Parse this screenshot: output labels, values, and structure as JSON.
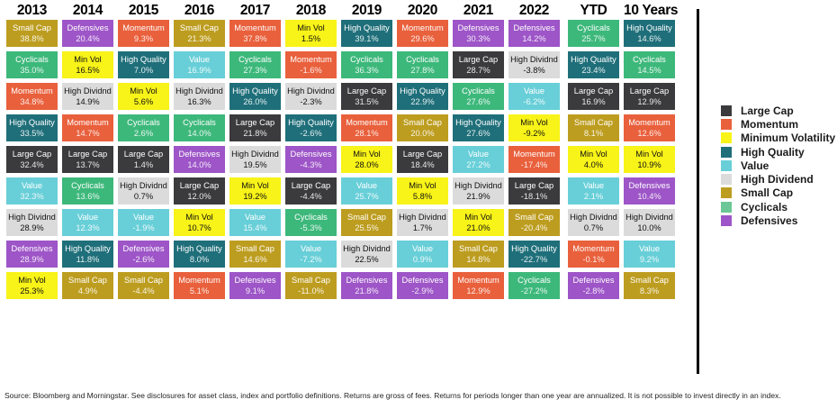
{
  "chart_data": {
    "type": "table",
    "unit": "%",
    "legend_position": "right",
    "columns": [
      {
        "label": "2013",
        "cells": [
          {
            "factor": "Small Cap",
            "value": "38.8%"
          },
          {
            "factor": "Cyclicals",
            "value": "35.0%"
          },
          {
            "factor": "Momentum",
            "value": "34.8%"
          },
          {
            "factor": "High Quality",
            "value": "33.5%"
          },
          {
            "factor": "Large Cap",
            "value": "32.4%"
          },
          {
            "factor": "Value",
            "value": "32.3%"
          },
          {
            "factor": "High Dividnd",
            "value": "28.9%"
          },
          {
            "factor": "Defensives",
            "value": "28.9%"
          },
          {
            "factor": "Min Vol",
            "value": "25.3%"
          }
        ]
      },
      {
        "label": "2014",
        "cells": [
          {
            "factor": "Defensives",
            "value": "20.4%"
          },
          {
            "factor": "Min Vol",
            "value": "16.5%"
          },
          {
            "factor": "High Dividnd",
            "value": "14.9%"
          },
          {
            "factor": "Momentum",
            "value": "14.7%"
          },
          {
            "factor": "Large Cap",
            "value": "13.7%"
          },
          {
            "factor": "Cyclicals",
            "value": "13.6%"
          },
          {
            "factor": "Value",
            "value": "12.3%"
          },
          {
            "factor": "High Quality",
            "value": "11.8%"
          },
          {
            "factor": "Small Cap",
            "value": "4.9%"
          }
        ]
      },
      {
        "label": "2015",
        "cells": [
          {
            "factor": "Momentum",
            "value": "9.3%"
          },
          {
            "factor": "High Quality",
            "value": "7.0%"
          },
          {
            "factor": "Min Vol",
            "value": "5.6%"
          },
          {
            "factor": "Cyclicals",
            "value": "2.6%"
          },
          {
            "factor": "Large Cap",
            "value": "1.4%"
          },
          {
            "factor": "High Dividnd",
            "value": "0.7%"
          },
          {
            "factor": "Value",
            "value": "-1.9%"
          },
          {
            "factor": "Defensives",
            "value": "-2.6%"
          },
          {
            "factor": "Small Cap",
            "value": "-4.4%"
          }
        ]
      },
      {
        "label": "2016",
        "cells": [
          {
            "factor": "Small Cap",
            "value": "21.3%"
          },
          {
            "factor": "Value",
            "value": "16.9%"
          },
          {
            "factor": "High Dividnd",
            "value": "16.3%"
          },
          {
            "factor": "Cyclicals",
            "value": "14.0%"
          },
          {
            "factor": "Defensives",
            "value": "14.0%"
          },
          {
            "factor": "Large Cap",
            "value": "12.0%"
          },
          {
            "factor": "Min Vol",
            "value": "10.7%"
          },
          {
            "factor": "High Quality",
            "value": "8.0%"
          },
          {
            "factor": "Momentum",
            "value": "5.1%"
          }
        ]
      },
      {
        "label": "2017",
        "cells": [
          {
            "factor": "Momentum",
            "value": "37.8%"
          },
          {
            "factor": "Cyclicals",
            "value": "27.3%"
          },
          {
            "factor": "High Quality",
            "value": "26.0%"
          },
          {
            "factor": "Large Cap",
            "value": "21.8%"
          },
          {
            "factor": "High Dividnd",
            "value": "19.5%"
          },
          {
            "factor": "Min Vol",
            "value": "19.2%"
          },
          {
            "factor": "Value",
            "value": "15.4%"
          },
          {
            "factor": "Small Cap",
            "value": "14.6%"
          },
          {
            "factor": "Defensives",
            "value": "9.1%"
          }
        ]
      },
      {
        "label": "2018",
        "cells": [
          {
            "factor": "Min Vol",
            "value": "1.5%"
          },
          {
            "factor": "Momentum",
            "value": "-1.6%"
          },
          {
            "factor": "High Dividnd",
            "value": "-2.3%"
          },
          {
            "factor": "High Quality",
            "value": "-2.6%"
          },
          {
            "factor": "Defensives",
            "value": "-4.3%"
          },
          {
            "factor": "Large Cap",
            "value": "-4.4%"
          },
          {
            "factor": "Cyclicals",
            "value": "-5.3%"
          },
          {
            "factor": "Value",
            "value": "-7.2%"
          },
          {
            "factor": "Small Cap",
            "value": "-11.0%"
          }
        ]
      },
      {
        "label": "2019",
        "cells": [
          {
            "factor": "High Quality",
            "value": "39.1%"
          },
          {
            "factor": "Cyclicals",
            "value": "36.3%"
          },
          {
            "factor": "Large Cap",
            "value": "31.5%"
          },
          {
            "factor": "Momentum",
            "value": "28.1%"
          },
          {
            "factor": "Min Vol",
            "value": "28.0%"
          },
          {
            "factor": "Value",
            "value": "25.7%"
          },
          {
            "factor": "Small Cap",
            "value": "25.5%"
          },
          {
            "factor": "High Dividnd",
            "value": "22.5%"
          },
          {
            "factor": "Defensives",
            "value": "21.8%"
          }
        ]
      },
      {
        "label": "2020",
        "cells": [
          {
            "factor": "Momentum",
            "value": "29.6%"
          },
          {
            "factor": "Cyclicals",
            "value": "27.8%"
          },
          {
            "factor": "High Quality",
            "value": "22.9%"
          },
          {
            "factor": "Small Cap",
            "value": "20.0%"
          },
          {
            "factor": "Large Cap",
            "value": "18.4%"
          },
          {
            "factor": "Min Vol",
            "value": "5.8%"
          },
          {
            "factor": "High Dividnd",
            "value": "1.7%"
          },
          {
            "factor": "Value",
            "value": "0.9%"
          },
          {
            "factor": "Defensives",
            "value": "-2.9%"
          }
        ]
      },
      {
        "label": "2021",
        "cells": [
          {
            "factor": "Defensives",
            "value": "30.3%"
          },
          {
            "factor": "Large Cap",
            "value": "28.7%"
          },
          {
            "factor": "Cyclicals",
            "value": "27.6%"
          },
          {
            "factor": "High Quality",
            "value": "27.6%"
          },
          {
            "factor": "Value",
            "value": "27.2%"
          },
          {
            "factor": "High Dividnd",
            "value": "21.9%"
          },
          {
            "factor": "Min Vol",
            "value": "21.0%"
          },
          {
            "factor": "Small Cap",
            "value": "14.8%"
          },
          {
            "factor": "Momentum",
            "value": "12.9%"
          }
        ]
      },
      {
        "label": "2022",
        "cells": [
          {
            "factor": "Defensives",
            "value": "14.2%"
          },
          {
            "factor": "High Dividnd",
            "value": "-3.8%"
          },
          {
            "factor": "Value",
            "value": "-6.2%"
          },
          {
            "factor": "Min Vol",
            "value": "-9.2%"
          },
          {
            "factor": "Momentum",
            "value": "-17.4%"
          },
          {
            "factor": "Large Cap",
            "value": "-18.1%"
          },
          {
            "factor": "Small Cap",
            "value": "-20.4%"
          },
          {
            "factor": "High Quality",
            "value": "-22.7%"
          },
          {
            "factor": "Cyclicals",
            "value": "-27.2%"
          }
        ]
      },
      {
        "label": "YTD",
        "extra_gap_before": true,
        "cells": [
          {
            "factor": "Cyclicals",
            "value": "25.7%"
          },
          {
            "factor": "High Quality",
            "value": "23.4%"
          },
          {
            "factor": "Large Cap",
            "value": "16.9%"
          },
          {
            "factor": "Small Cap",
            "value": "8.1%"
          },
          {
            "factor": "Min Vol",
            "value": "4.0%"
          },
          {
            "factor": "Value",
            "value": "2.1%"
          },
          {
            "factor": "High Dividnd",
            "value": "0.7%"
          },
          {
            "factor": "Momentum",
            "value": "-0.1%"
          },
          {
            "factor": "Defensives",
            "value": "-2.8%"
          }
        ]
      },
      {
        "label": "10 Years",
        "cells": [
          {
            "factor": "High Quality",
            "value": "14.6%"
          },
          {
            "factor": "Cyclicals",
            "value": "14.5%"
          },
          {
            "factor": "Large Cap",
            "value": "12.9%"
          },
          {
            "factor": "Momentum",
            "value": "12.6%"
          },
          {
            "factor": "Min Vol",
            "value": "10.9%"
          },
          {
            "factor": "Defensives",
            "value": "10.4%"
          },
          {
            "factor": "High Dividnd",
            "value": "10.0%"
          },
          {
            "factor": "Value",
            "value": "9.2%"
          },
          {
            "factor": "Small Cap",
            "value": "8.3%"
          }
        ]
      }
    ],
    "legend": [
      {
        "label": "Large Cap",
        "color": "#3b3b3d"
      },
      {
        "label": "Momentum",
        "color": "#e9603c"
      },
      {
        "label": "Minimum Volatility",
        "color": "#f8f318"
      },
      {
        "label": "High Quality",
        "color": "#1f6f7a"
      },
      {
        "label": "Value",
        "color": "#68cfd8"
      },
      {
        "label": "High Dividend",
        "color": "#dbdbdb"
      },
      {
        "label": "Small Cap",
        "color": "#bd9d20"
      },
      {
        "label": "Cyclicals",
        "color": "#6bc795"
      },
      {
        "label": "Defensives",
        "color": "#9d55c7"
      }
    ]
  },
  "factor_styles": {
    "Large Cap": {
      "bg": "#3b3b3d",
      "text": "#ffffff"
    },
    "Momentum": {
      "bg": "#e9603c",
      "text": "#ffffff"
    },
    "Min Vol": {
      "bg": "#f8f318",
      "text": "#111111"
    },
    "High Quality": {
      "bg": "#1f6f7a",
      "text": "#ffffff"
    },
    "Value": {
      "bg": "#68cfd8",
      "text": "#ffffff"
    },
    "High Dividnd": {
      "bg": "#dbdbdb",
      "text": "#111111"
    },
    "Small Cap": {
      "bg": "#bd9d20",
      "text": "#ffffff"
    },
    "Cyclicals": {
      "bg": "#3db87b",
      "text": "#ffffff"
    },
    "Defensives": {
      "bg": "#9d55c7",
      "text": "#ffffff"
    }
  },
  "source": "Source: Bloomberg and Morningstar. See disclosures for asset class, index and portfolio definitions. Returns are gross of fees. Returns for periods longer than one year are annualized. It is not possible to invest directly in an index."
}
